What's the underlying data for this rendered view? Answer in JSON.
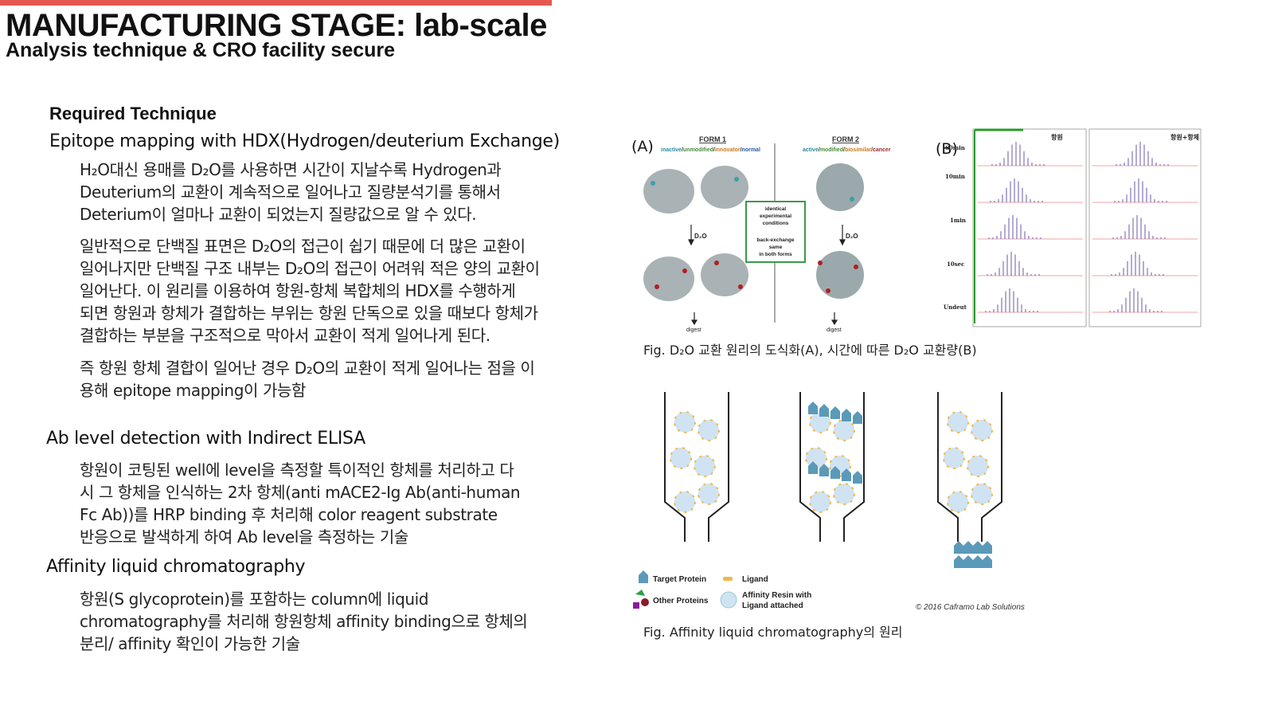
{
  "header": {
    "title": "MANUFACTURING STAGE: lab-scale",
    "subtitle": "Analysis technique & CRO facility secure"
  },
  "section_label": "Required Technique",
  "hdx": {
    "heading": "Epitope mapping with HDX(Hydrogen/deuterium Exchange)",
    "para1": [
      "H₂O대신 용매를 D₂O를 사용하면 시간이 지날수록 Hydrogen과",
      "Deuterium의 교환이 계속적으로 일어나고 질량분석기를 통해서",
      "Deterium이 얼마나 교환이 되었는지 질량값으로 알 수 있다."
    ],
    "para2": [
      "일반적으로 단백질 표면은 D₂O의 접근이 쉽기 때문에 더 많은 교환이",
      "일어나지만 단백질 구조 내부는 D₂O의 접근이 어려워 적은 양의 교환이",
      "일어난다. 이 원리를 이용하여 항원-항체 복합체의 HDX를 수행하게",
      "되면 항원과 항체가 결합하는 부위는 항원 단독으로 있을 때보다 항체가",
      "결합하는 부분을 구조적으로 막아서 교환이 적게 일어나게 된다."
    ],
    "para3": [
      "즉 항원 항체 결합이 일어난 경우 D₂O의 교환이 적게 일어나는 점을 이",
      "용해 epitope mapping이 가능함"
    ]
  },
  "elisa": {
    "heading": "Ab level detection with Indirect ELISA",
    "para": [
      "항원이 코팅된 well에 level을 측정할 특이적인 항체를 처리하고 다",
      "시 그 항체을 인식하는 2차 항체(anti mACE2-Ig Ab(anti-human",
      "Fc Ab))를 HRP binding 후 처리해 color reagent substrate",
      "반응으로 발색하게 하여 Ab level을 측정하는 기술"
    ]
  },
  "affinity": {
    "heading": "Affinity liquid chromatography",
    "para": [
      "항원(S glycoprotein)를 포함하는 column에 liquid",
      "chromatography를 처리해 항원항체 affinity binding으로 항체의",
      "분리/ affinity 확인이 가능한 기술"
    ]
  },
  "figure_hdx": {
    "label_a": "(A)",
    "label_b": "(B)",
    "form1": "FORM 1",
    "form1_sub": [
      "inactive",
      "/",
      "unmodified",
      "/",
      "innovator",
      "/",
      "normal"
    ],
    "form2": "FORM 2",
    "form2_sub": [
      "active",
      "/",
      "modified",
      "/",
      "biosimilar",
      "/",
      "cancer"
    ],
    "box_lines": [
      "identical",
      "experimental",
      "conditions",
      "",
      "back-exchange",
      "same",
      "in both forms"
    ],
    "d2o": "D₂O",
    "digest": "digest",
    "panel_b_cols": [
      "항원",
      "항원+항체"
    ],
    "panel_b_rows": [
      "60min",
      "10min",
      "1min",
      "10sec",
      "Undeut"
    ],
    "caption": "Fig. D₂O 교환 원리의 도식화(A), 시간에 따른 D₂O 교환량(B)"
  },
  "figure_affinity": {
    "legend": [
      "Target Protein",
      "Ligand",
      "Other Proteins",
      "Affinity Resin with",
      "Ligand attached"
    ],
    "credit": "© 2016 Caframo Lab Solutions",
    "caption": "Fig. Affinity liquid chromatography의 원리"
  }
}
